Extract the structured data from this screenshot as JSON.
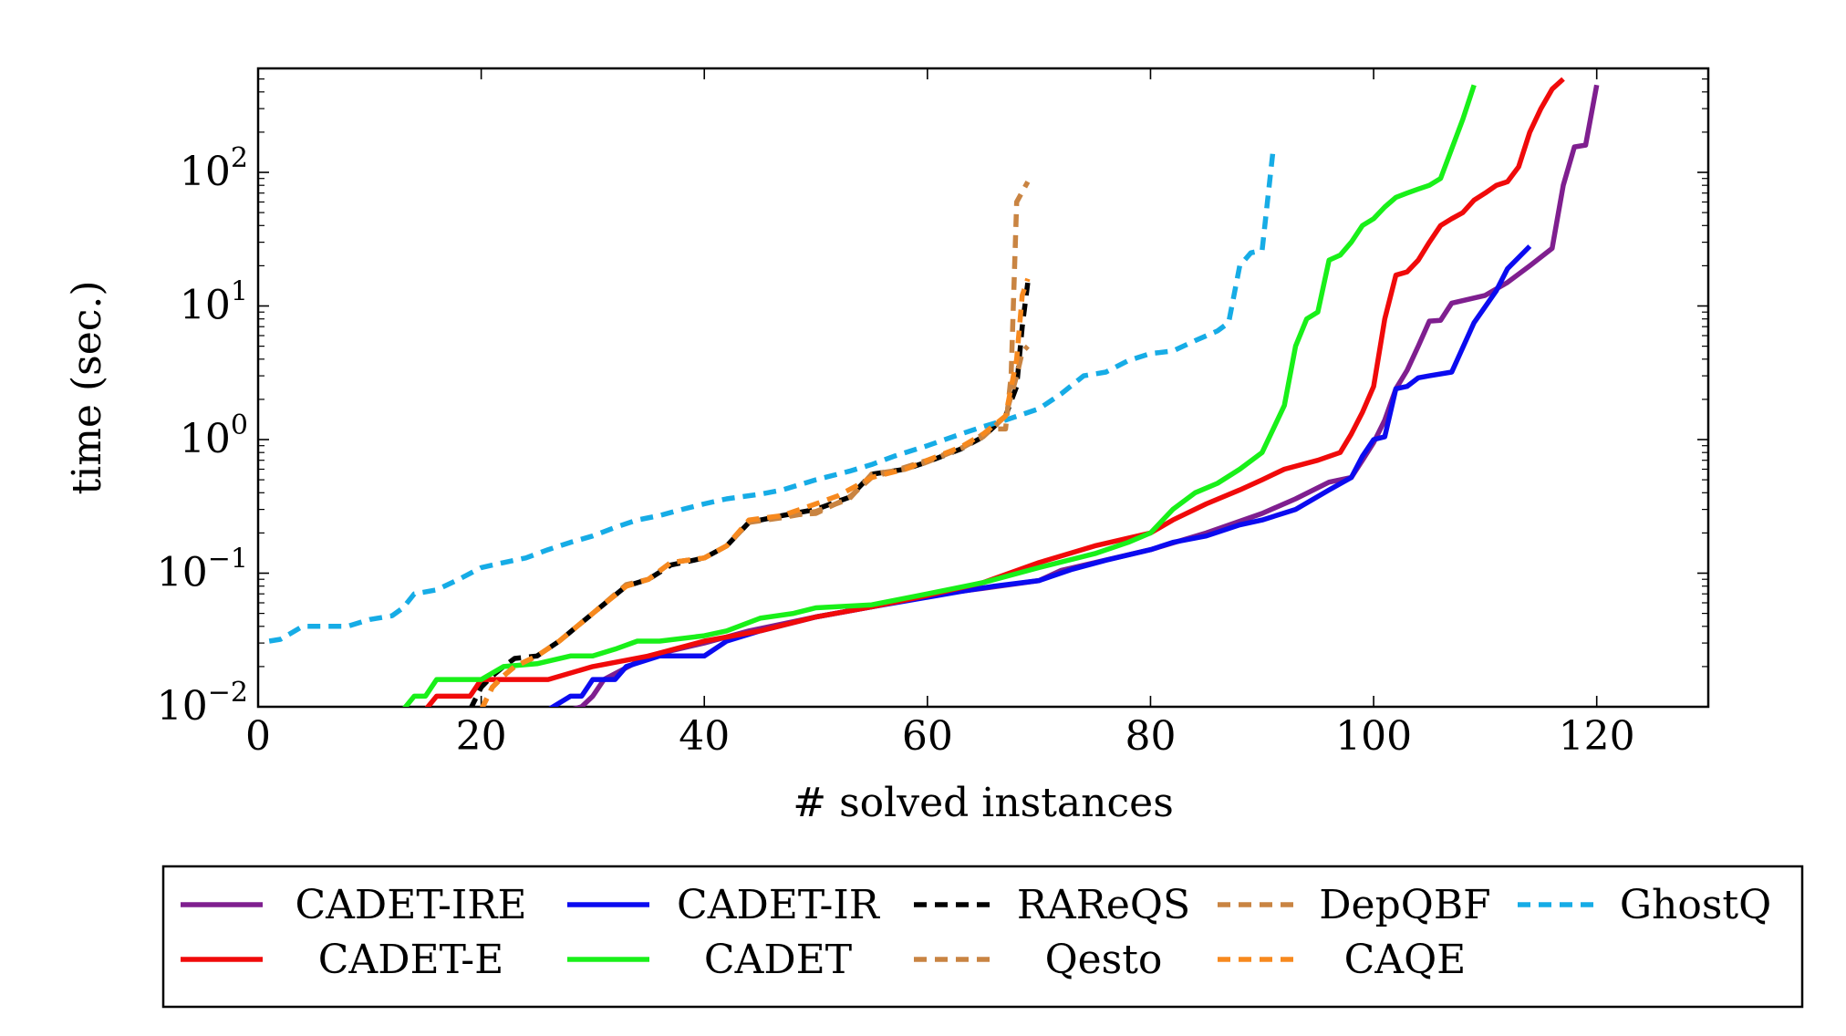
{
  "chart_data": {
    "type": "line",
    "title": "",
    "xlabel": "# solved instances",
    "ylabel": "time (sec.)",
    "xlim": [
      0,
      130
    ],
    "ylim": [
      0.01,
      600
    ],
    "y_scale": "log",
    "grid": false,
    "legend_position": "below",
    "x_ticks": [
      {
        "value": 0,
        "label": "0"
      },
      {
        "value": 20,
        "label": "20"
      },
      {
        "value": 40,
        "label": "40"
      },
      {
        "value": 60,
        "label": "60"
      },
      {
        "value": 80,
        "label": "80"
      },
      {
        "value": 100,
        "label": "100"
      },
      {
        "value": 120,
        "label": "120"
      }
    ],
    "y_ticks": [
      {
        "value": 0.01,
        "base": "10",
        "exp": "−2"
      },
      {
        "value": 0.1,
        "base": "10",
        "exp": "−1"
      },
      {
        "value": 1,
        "base": "10",
        "exp": "0"
      },
      {
        "value": 10,
        "base": "10",
        "exp": "1"
      },
      {
        "value": 100,
        "base": "10",
        "exp": "2"
      }
    ],
    "series": [
      {
        "name": "CADET-IRE",
        "color": "#7f1f8f",
        "dash": "solid",
        "x": [
          28,
          29,
          30,
          31,
          35,
          40,
          44,
          50,
          55,
          60,
          65,
          70,
          72,
          75,
          80,
          85,
          90,
          93,
          96,
          98,
          99,
          100,
          101,
          102,
          103,
          104,
          105,
          106,
          107,
          110,
          112,
          114,
          116,
          117,
          118,
          119,
          120
        ],
        "y": [
          0.0095,
          0.01,
          0.012,
          0.016,
          0.024,
          0.03,
          0.037,
          0.047,
          0.056,
          0.068,
          0.077,
          0.088,
          0.105,
          0.12,
          0.15,
          0.2,
          0.28,
          0.36,
          0.48,
          0.52,
          0.7,
          0.95,
          1.4,
          2.4,
          3.3,
          5.0,
          7.7,
          7.8,
          10.5,
          12.0,
          15.0,
          20.0,
          27.0,
          80.0,
          155.0,
          160.0,
          450.0
        ]
      },
      {
        "name": "CADET-IR",
        "color": "#0b0bf0",
        "dash": "solid",
        "x": [
          26,
          28,
          29,
          30,
          32,
          33,
          36,
          40,
          42,
          45,
          50,
          55,
          60,
          63,
          66,
          70,
          73,
          76,
          80,
          82,
          85,
          88,
          90,
          93,
          96,
          98,
          99,
          100,
          101,
          102,
          103,
          104,
          105,
          107,
          109,
          111,
          112,
          114
        ],
        "y": [
          0.0095,
          0.012,
          0.012,
          0.016,
          0.016,
          0.02,
          0.024,
          0.024,
          0.031,
          0.037,
          0.047,
          0.056,
          0.066,
          0.073,
          0.08,
          0.088,
          0.107,
          0.125,
          0.15,
          0.17,
          0.19,
          0.23,
          0.25,
          0.3,
          0.42,
          0.52,
          0.75,
          1.0,
          1.05,
          2.4,
          2.5,
          2.9,
          3.0,
          3.2,
          7.5,
          13.0,
          19.0,
          28.0
        ]
      },
      {
        "name": "RAReQS",
        "color": "#000000",
        "dash": "dashed",
        "x": [
          19,
          20,
          21,
          22,
          23,
          25,
          27,
          30,
          33,
          35,
          37,
          40,
          42,
          44,
          47,
          50,
          53,
          55,
          58,
          60,
          63,
          65,
          67,
          68,
          68.5,
          69
        ],
        "y": [
          0.0095,
          0.014,
          0.017,
          0.02,
          0.023,
          0.024,
          0.031,
          0.05,
          0.08,
          0.09,
          0.115,
          0.13,
          0.16,
          0.24,
          0.27,
          0.3,
          0.37,
          0.55,
          0.6,
          0.68,
          0.85,
          1.05,
          1.5,
          2.5,
          7.0,
          15.0
        ]
      },
      {
        "name": "DepQBF",
        "color": "#c98442",
        "dash": "dashed",
        "x": [
          20,
          21,
          22,
          23,
          25,
          27,
          30,
          33,
          35,
          37,
          40,
          42,
          44,
          47,
          50,
          53,
          55,
          58,
          60,
          63,
          65,
          66,
          67,
          67.5,
          68,
          69
        ],
        "y": [
          0.0095,
          0.014,
          0.017,
          0.02,
          0.024,
          0.031,
          0.05,
          0.082,
          0.09,
          0.12,
          0.13,
          0.16,
          0.24,
          0.27,
          0.28,
          0.37,
          0.52,
          0.62,
          0.7,
          0.85,
          1.1,
          1.2,
          1.2,
          3.0,
          60.0,
          85.0
        ]
      },
      {
        "name": "GhostQ",
        "color": "#16ace6",
        "dash": "dashed",
        "x": [
          1,
          2,
          4,
          6,
          8,
          10,
          12,
          13,
          14,
          16,
          18,
          20,
          22,
          24,
          26,
          28,
          30,
          32,
          34,
          36,
          38,
          40,
          42,
          45,
          47,
          50,
          53,
          55,
          57,
          60,
          63,
          65,
          67,
          70,
          72,
          74,
          76,
          78,
          80,
          82,
          84,
          86,
          87,
          88,
          89,
          90,
          91
        ],
        "y": [
          0.031,
          0.032,
          0.04,
          0.04,
          0.04,
          0.045,
          0.048,
          0.055,
          0.07,
          0.075,
          0.09,
          0.11,
          0.12,
          0.13,
          0.15,
          0.17,
          0.19,
          0.22,
          0.25,
          0.27,
          0.3,
          0.33,
          0.36,
          0.39,
          0.42,
          0.5,
          0.58,
          0.65,
          0.75,
          0.9,
          1.1,
          1.25,
          1.4,
          1.7,
          2.2,
          3.0,
          3.2,
          3.9,
          4.4,
          4.6,
          5.5,
          6.5,
          7.5,
          20.0,
          25.0,
          26.0,
          150.0
        ]
      },
      {
        "name": "CADET-E",
        "color": "#f00a0a",
        "dash": "solid",
        "x": [
          15,
          16,
          19,
          20,
          26,
          30,
          35,
          40,
          45,
          50,
          55,
          60,
          65,
          70,
          75,
          80,
          82,
          85,
          88,
          90,
          92,
          95,
          97,
          98,
          99,
          100,
          101,
          102,
          103,
          104,
          105,
          106,
          107,
          108,
          109,
          110,
          111,
          112,
          113,
          114,
          115,
          116,
          117
        ],
        "y": [
          0.0095,
          0.012,
          0.012,
          0.016,
          0.016,
          0.02,
          0.024,
          0.031,
          0.037,
          0.047,
          0.056,
          0.068,
          0.085,
          0.12,
          0.16,
          0.2,
          0.25,
          0.33,
          0.42,
          0.5,
          0.6,
          0.7,
          0.8,
          1.1,
          1.6,
          2.5,
          8.0,
          17.0,
          18.0,
          22.0,
          30.0,
          40.0,
          45.0,
          50.0,
          62.0,
          70.0,
          80.0,
          85.0,
          110.0,
          200.0,
          300.0,
          420.0,
          500.0
        ]
      },
      {
        "name": "CADET",
        "color": "#19f019",
        "dash": "solid",
        "x": [
          13,
          14,
          15,
          16,
          20,
          22,
          25,
          28,
          30,
          32,
          34,
          36,
          40,
          42,
          45,
          48,
          50,
          55,
          60,
          65,
          70,
          75,
          78,
          80,
          82,
          84,
          86,
          88,
          90,
          91,
          92,
          93,
          94,
          95,
          96,
          97,
          98,
          99,
          100,
          101,
          102,
          103,
          104,
          105,
          106,
          107,
          108,
          109
        ],
        "y": [
          0.0095,
          0.012,
          0.012,
          0.016,
          0.016,
          0.02,
          0.021,
          0.024,
          0.024,
          0.027,
          0.031,
          0.031,
          0.034,
          0.037,
          0.046,
          0.05,
          0.055,
          0.058,
          0.07,
          0.085,
          0.11,
          0.14,
          0.17,
          0.2,
          0.3,
          0.4,
          0.47,
          0.6,
          0.8,
          1.2,
          1.8,
          5.0,
          8.0,
          9.0,
          22.0,
          24.0,
          30.0,
          40.0,
          45.0,
          55.0,
          65.0,
          70.0,
          75.0,
          80.0,
          90.0,
          150.0,
          250.0,
          450.0
        ]
      },
      {
        "name": "Qesto",
        "color": "#c98442",
        "dash": "dashed",
        "x": [
          20,
          21,
          22,
          23,
          25,
          27,
          30,
          33,
          35,
          37,
          40,
          42,
          44,
          47,
          50,
          53,
          55,
          58,
          60,
          63,
          65,
          67,
          68,
          68.5,
          69
        ],
        "y": [
          0.0095,
          0.014,
          0.017,
          0.02,
          0.024,
          0.031,
          0.05,
          0.08,
          0.09,
          0.12,
          0.13,
          0.16,
          0.24,
          0.26,
          0.29,
          0.36,
          0.55,
          0.6,
          0.68,
          0.86,
          1.05,
          1.5,
          3.0,
          4.5,
          5.0
        ]
      },
      {
        "name": "CAQE",
        "color": "#f7891e",
        "dash": "dashed",
        "x": [
          20,
          21,
          22,
          23,
          25,
          27,
          30,
          33,
          35,
          37,
          40,
          42,
          44,
          47,
          50,
          52,
          55,
          58,
          60,
          63,
          65,
          67,
          68,
          68.5,
          69
        ],
        "y": [
          0.0095,
          0.014,
          0.017,
          0.02,
          0.024,
          0.031,
          0.05,
          0.08,
          0.09,
          0.12,
          0.13,
          0.16,
          0.25,
          0.27,
          0.33,
          0.38,
          0.52,
          0.6,
          0.7,
          0.88,
          1.1,
          1.5,
          4.0,
          12.0,
          16.0
        ]
      }
    ],
    "legend_rows": [
      [
        "CADET-IRE",
        "CADET-IR",
        "RAReQS",
        "DepQBF",
        "GhostQ"
      ],
      [
        "CADET-E",
        "CADET",
        "Qesto",
        "CAQE"
      ]
    ]
  }
}
